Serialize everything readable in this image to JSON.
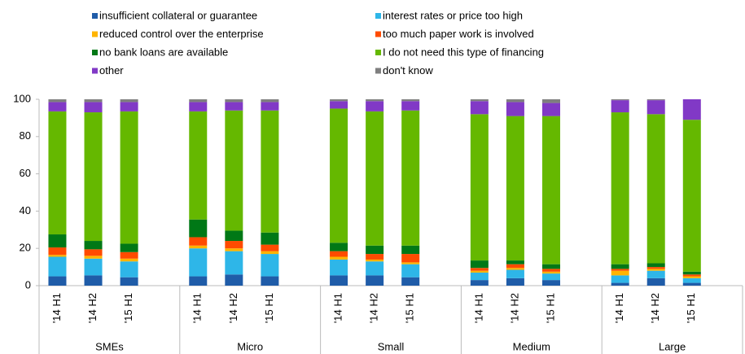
{
  "chart_data": {
    "type": "stacked-bar",
    "groups": [
      "SMEs",
      "Micro",
      "Small",
      "Medium",
      "Large"
    ],
    "categories": [
      "'14 H1",
      "'14 H2",
      "'15 H1",
      "'14 H1",
      "'14 H2",
      "'15 H1",
      "'14 H1",
      "'14 H2",
      "'15 H1",
      "'14 H1",
      "'14 H2",
      "'15 H1",
      "'14 H1",
      "'14 H2",
      "'15 H1"
    ],
    "series": [
      {
        "name": "insufficient collateral or guarantee",
        "color": "#1f5ca8",
        "values": [
          5,
          5.5,
          4.5,
          5,
          6,
          5,
          5.5,
          5.5,
          4.5,
          3,
          4,
          3,
          1.5,
          4,
          1.5
        ]
      },
      {
        "name": "interest rates or price too high",
        "color": "#2eb6e8",
        "values": [
          10.5,
          9,
          8.5,
          15,
          12.5,
          12,
          8.5,
          7.5,
          7,
          4,
          4.5,
          3.5,
          4,
          4,
          2.5
        ]
      },
      {
        "name": "reduced control over the enterprise",
        "color": "#ffb400",
        "values": [
          1,
          1.5,
          1.5,
          1.5,
          1.5,
          1.5,
          1.5,
          1,
          1,
          1,
          1,
          1,
          2.5,
          1,
          1
        ]
      },
      {
        "name": "too much paper work is involved",
        "color": "#ff4b00",
        "values": [
          4,
          3.5,
          3.5,
          4.5,
          4,
          3.5,
          3,
          3,
          4.5,
          1.5,
          2,
          1.5,
          1,
          1,
          1
        ]
      },
      {
        "name": "no bank loans are available",
        "color": "#007816",
        "values": [
          7,
          4.5,
          4.5,
          9.5,
          5.5,
          6.5,
          4.5,
          4.5,
          4.5,
          4,
          2,
          2.5,
          2.5,
          2,
          1.5
        ]
      },
      {
        "name": "I do not need this type of financing",
        "color": "#65b800",
        "values": [
          66,
          69,
          71,
          58,
          64.5,
          65.5,
          72,
          72,
          72.5,
          78.5,
          77.5,
          79.5,
          81.5,
          80,
          81.5
        ]
      },
      {
        "name": "other",
        "color": "#8139c6",
        "values": [
          5,
          5.5,
          5,
          5,
          4.5,
          4.5,
          4,
          5.5,
          5,
          7,
          7.5,
          7,
          6.5,
          7.5,
          11
        ]
      },
      {
        "name": "don't know",
        "color": "#7f7f7f",
        "values": [
          1.5,
          1.5,
          1.5,
          1.5,
          1.5,
          1.5,
          1,
          1,
          1,
          1,
          1.5,
          2,
          0.5,
          0.5,
          0
        ]
      }
    ],
    "ylim": [
      0,
      100
    ],
    "yticks": [
      0,
      20,
      40,
      60,
      80,
      100
    ]
  }
}
